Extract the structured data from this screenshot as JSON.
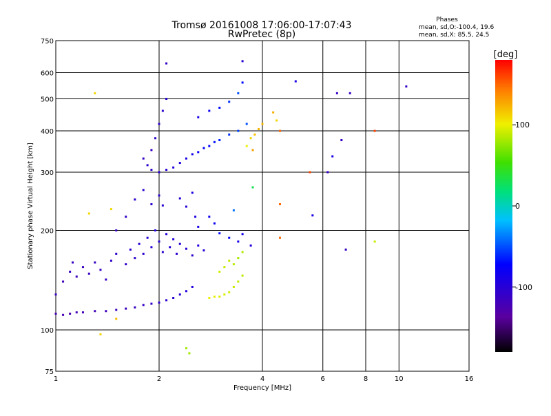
{
  "chart_data": {
    "type": "scatter",
    "title": "Tromsø 20161008 17:06:00-17:07:43",
    "subtitle": "RwPretec (8p)",
    "xlabel": "Frequency [MHz]",
    "ylabel": "Stationary phase Virtual Height [km]",
    "x_scale": "log",
    "y_scale": "log",
    "xlim": [
      1,
      16
    ],
    "ylim": [
      75,
      750
    ],
    "x_ticks": [
      "1",
      "2",
      "4",
      "6",
      "8",
      "10",
      "16"
    ],
    "y_ticks": [
      "75",
      "100",
      "200",
      "300",
      "400",
      "500",
      "600",
      "750"
    ],
    "grid": true,
    "phase_stats": {
      "heading": "Phases",
      "line_o": "mean, sd,O:-100.4, 19.6",
      "line_x": "mean, sd,X:  85.5, 24.5"
    },
    "colorbar": {
      "label": "[deg]",
      "range": [
        -180,
        180
      ],
      "ticks": [
        "100",
        "0",
        "-100"
      ],
      "tick_values": [
        100,
        0,
        -100
      ]
    },
    "series": [
      {
        "values": [
          [
            1.0,
            112,
            -125
          ],
          [
            1.05,
            111,
            -125
          ],
          [
            1.1,
            112,
            -124
          ],
          [
            1.15,
            113,
            -123
          ],
          [
            1.2,
            113,
            -122
          ],
          [
            1.3,
            114,
            -120
          ],
          [
            1.4,
            114,
            -118
          ],
          [
            1.5,
            115,
            -116
          ],
          [
            1.6,
            116,
            -114
          ],
          [
            1.7,
            117,
            -112
          ],
          [
            1.8,
            119,
            -110
          ],
          [
            1.9,
            120,
            -108
          ],
          [
            2.0,
            121,
            -106
          ],
          [
            2.1,
            123,
            -104
          ],
          [
            2.2,
            125,
            -102
          ],
          [
            2.3,
            128,
            -100
          ],
          [
            2.4,
            131,
            -98
          ],
          [
            2.5,
            135,
            -96
          ],
          [
            1.0,
            128,
            -115
          ],
          [
            1.05,
            140,
            -118
          ],
          [
            1.1,
            150,
            -116
          ],
          [
            1.12,
            160,
            -112
          ],
          [
            1.15,
            145,
            -118
          ],
          [
            1.2,
            155,
            -115
          ],
          [
            1.25,
            148,
            -114
          ],
          [
            1.3,
            160,
            -110
          ],
          [
            1.35,
            152,
            -112
          ],
          [
            1.4,
            142,
            -115
          ],
          [
            1.45,
            162,
            -108
          ],
          [
            1.5,
            170,
            -105
          ],
          [
            1.6,
            158,
            -110
          ],
          [
            1.65,
            175,
            -104
          ],
          [
            1.7,
            165,
            -106
          ],
          [
            1.75,
            182,
            -100
          ],
          [
            1.8,
            170,
            -104
          ],
          [
            1.85,
            190,
            -98
          ],
          [
            1.9,
            178,
            -100
          ],
          [
            1.95,
            200,
            -96
          ],
          [
            2.0,
            185,
            -100
          ],
          [
            2.05,
            172,
            -104
          ],
          [
            2.1,
            195,
            -98
          ],
          [
            2.15,
            178,
            -100
          ],
          [
            2.2,
            188,
            -98
          ],
          [
            2.25,
            170,
            -104
          ],
          [
            2.3,
            182,
            -100
          ],
          [
            2.4,
            176,
            -100
          ],
          [
            2.5,
            168,
            -104
          ],
          [
            2.6,
            180,
            -95
          ],
          [
            2.7,
            174,
            -98
          ],
          [
            1.5,
            200,
            -110
          ],
          [
            1.6,
            220,
            -108
          ],
          [
            1.7,
            248,
            -104
          ],
          [
            1.8,
            265,
            -102
          ],
          [
            1.9,
            240,
            -104
          ],
          [
            2.0,
            255,
            -102
          ],
          [
            2.05,
            238,
            -104
          ],
          [
            2.3,
            250,
            -100
          ],
          [
            2.4,
            236,
            -101
          ],
          [
            2.5,
            260,
            -90
          ],
          [
            2.55,
            220,
            -92
          ],
          [
            2.6,
            205,
            -90
          ],
          [
            2.8,
            220,
            -80
          ],
          [
            2.9,
            210,
            -80
          ],
          [
            3.0,
            196,
            -70
          ],
          [
            3.2,
            190,
            -72
          ],
          [
            3.4,
            185,
            -88
          ],
          [
            3.5,
            195,
            -86
          ],
          [
            3.7,
            180,
            -95
          ],
          [
            1.8,
            330,
            -110
          ],
          [
            1.9,
            350,
            -112
          ],
          [
            1.95,
            380,
            -108
          ],
          [
            2.0,
            420,
            -106
          ],
          [
            2.05,
            460,
            -104
          ],
          [
            2.1,
            500,
            -100
          ],
          [
            2.1,
            640,
            -110
          ],
          [
            1.85,
            315,
            -104
          ],
          [
            1.9,
            305,
            -105
          ],
          [
            2.0,
            300,
            -103
          ],
          [
            2.1,
            305,
            -100
          ],
          [
            2.2,
            310,
            -98
          ],
          [
            2.3,
            320,
            -94
          ],
          [
            2.4,
            330,
            -90
          ],
          [
            2.5,
            340,
            -86
          ],
          [
            2.6,
            345,
            -80
          ],
          [
            2.7,
            355,
            -76
          ],
          [
            2.8,
            360,
            -72
          ],
          [
            2.9,
            370,
            -68
          ],
          [
            3.0,
            375,
            -64
          ],
          [
            3.2,
            390,
            -60
          ],
          [
            3.4,
            400,
            -55
          ],
          [
            3.6,
            420,
            -50
          ],
          [
            2.6,
            440,
            -90
          ],
          [
            2.8,
            460,
            -80
          ],
          [
            3.0,
            470,
            -70
          ],
          [
            3.2,
            490,
            -60
          ],
          [
            3.4,
            520,
            -50
          ],
          [
            3.5,
            560,
            -70
          ],
          [
            3.5,
            650,
            -100
          ],
          [
            3.6,
            360,
            100
          ],
          [
            3.7,
            380,
            110
          ],
          [
            3.8,
            390,
            118
          ],
          [
            3.9,
            405,
            122
          ],
          [
            4.0,
            420,
            120
          ],
          [
            4.3,
            455,
            125
          ],
          [
            4.4,
            430,
            110
          ],
          [
            3.75,
            350,
            130
          ],
          [
            2.8,
            125,
            100
          ],
          [
            2.9,
            126,
            98
          ],
          [
            3.0,
            126,
            96
          ],
          [
            3.1,
            128,
            94
          ],
          [
            3.2,
            130,
            92
          ],
          [
            3.3,
            135,
            90
          ],
          [
            3.4,
            140,
            88
          ],
          [
            3.5,
            146,
            86
          ],
          [
            3.0,
            150,
            92
          ],
          [
            3.1,
            155,
            90
          ],
          [
            3.2,
            162,
            88
          ],
          [
            3.3,
            158,
            86
          ],
          [
            3.4,
            165,
            80
          ],
          [
            3.5,
            172,
            84
          ],
          [
            5.5,
            300,
            160
          ],
          [
            5.6,
            222,
            -90
          ],
          [
            6.2,
            300,
            -110
          ],
          [
            6.4,
            335,
            -90
          ],
          [
            6.8,
            375,
            -110
          ],
          [
            6.6,
            520,
            -110
          ],
          [
            10.5,
            545,
            -110
          ],
          [
            7.2,
            520,
            -110
          ],
          [
            5.0,
            565,
            -90
          ],
          [
            4.5,
            400,
            150
          ],
          [
            4.5,
            240,
            150
          ],
          [
            4.5,
            190,
            150
          ],
          [
            8.5,
            185,
            90
          ],
          [
            8.5,
            400,
            160
          ],
          [
            1.3,
            520,
            110
          ],
          [
            1.25,
            225,
            110
          ],
          [
            1.45,
            232,
            110
          ],
          [
            1.35,
            97,
            110
          ],
          [
            1.5,
            108,
            120
          ],
          [
            2.4,
            88,
            80
          ],
          [
            2.45,
            85,
            80
          ],
          [
            7.0,
            175,
            -110
          ],
          [
            3.75,
            270,
            30
          ],
          [
            3.3,
            230,
            -40
          ]
        ]
      }
    ]
  }
}
